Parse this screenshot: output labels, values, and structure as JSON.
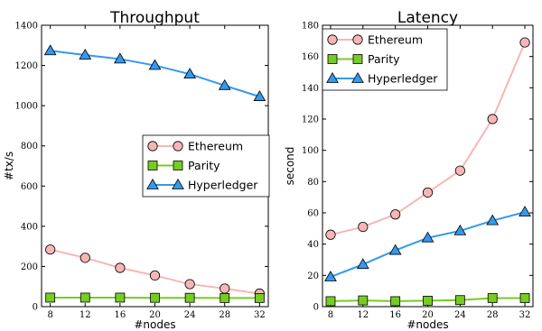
{
  "chart_data": [
    {
      "type": "line",
      "title": "Throughput",
      "xlabel": "#nodes",
      "ylabel": "#tx/s",
      "x": [
        8,
        12,
        16,
        20,
        24,
        28,
        32
      ],
      "xticks": [
        "8",
        "12",
        "16",
        "20",
        "24",
        "28",
        "32"
      ],
      "ylim": [
        0,
        1400
      ],
      "yticks": [
        "0",
        "200",
        "400",
        "600",
        "800",
        "1000",
        "1200",
        "1400"
      ],
      "legend_position": "center-right",
      "series": [
        {
          "name": "Ethereum",
          "values": [
            284,
            243,
            193,
            155,
            112,
            90,
            65
          ],
          "color": "#f7b6b6",
          "marker": "circle"
        },
        {
          "name": "Parity",
          "values": [
            45,
            45,
            45,
            44,
            44,
            43,
            43
          ],
          "color": "#77cc22",
          "marker": "square"
        },
        {
          "name": "Hyperledger",
          "values": [
            1273,
            1252,
            1232,
            1200,
            1157,
            1100,
            1045
          ],
          "color": "#3399ee",
          "marker": "triangle"
        }
      ]
    },
    {
      "type": "line",
      "title": "Latency",
      "xlabel": "#nodes",
      "ylabel": "second",
      "x": [
        8,
        12,
        16,
        20,
        24,
        28,
        32
      ],
      "xticks": [
        "8",
        "12",
        "16",
        "20",
        "24",
        "28",
        "32"
      ],
      "ylim": [
        0,
        180
      ],
      "yticks": [
        "0",
        "20",
        "40",
        "60",
        "80",
        "100",
        "120",
        "140",
        "160",
        "180"
      ],
      "legend_position": "top-left",
      "series": [
        {
          "name": "Ethereum",
          "values": [
            46,
            51,
            59,
            73,
            87,
            120,
            169
          ],
          "color": "#f7b6b6",
          "marker": "circle"
        },
        {
          "name": "Parity",
          "values": [
            3.5,
            4,
            3.5,
            3.8,
            4.2,
            5.5,
            5.5
          ],
          "color": "#77cc22",
          "marker": "square"
        },
        {
          "name": "Hyperledger",
          "values": [
            19,
            27,
            36,
            44,
            48.5,
            55,
            60.5
          ],
          "color": "#3399ee",
          "marker": "triangle"
        }
      ]
    }
  ]
}
